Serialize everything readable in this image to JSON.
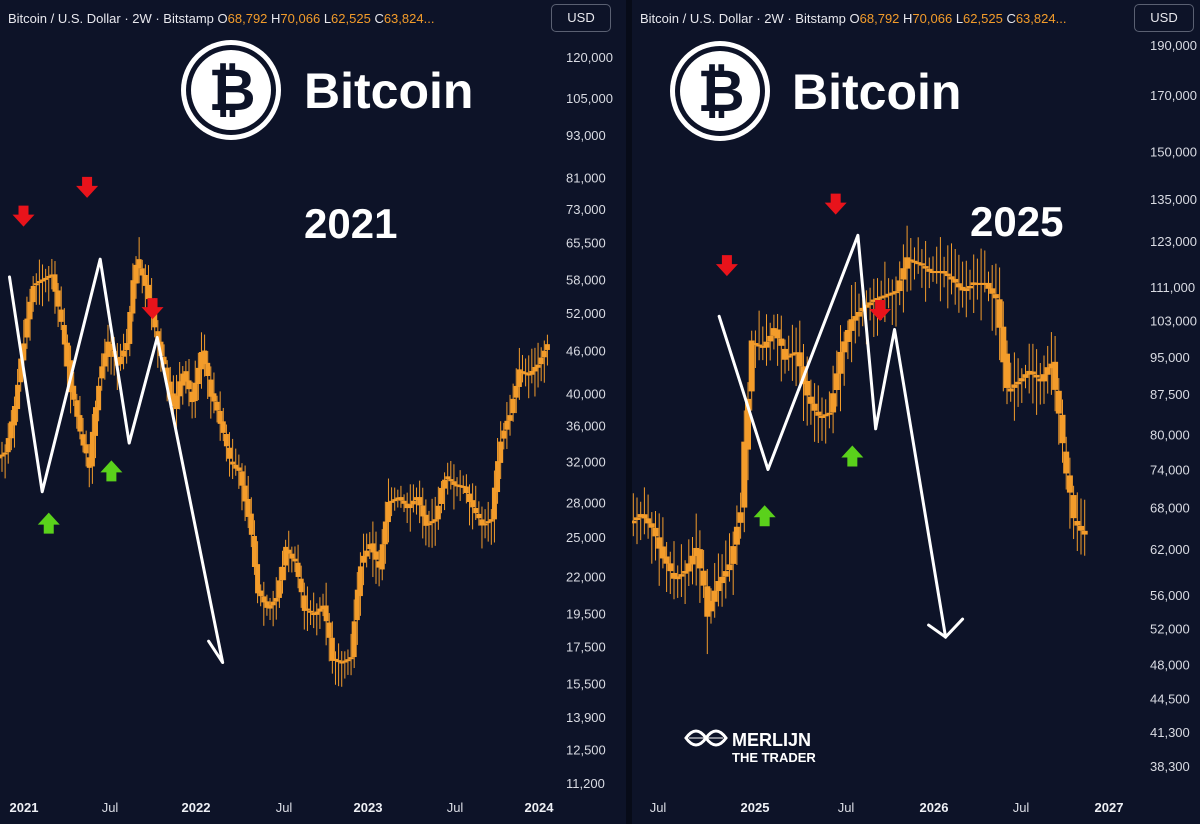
{
  "chart_data": [
    {
      "type": "candlestick",
      "header": {
        "symbol": "Bitcoin / U.S. Dollar · 2W · Bitstamp",
        "open_label": "O",
        "open": "68,792",
        "high_label": "H",
        "high": "70,066",
        "low_label": "L",
        "low": "62,525",
        "close_label": "C",
        "close": "63,824..."
      },
      "currency_button": "USD",
      "logo_text": "Bitcoin",
      "annotation_year": "2021",
      "y_axis_scale": "log",
      "y_axis_ticks": [
        "120,000",
        "105,000",
        "93,000",
        "81,000",
        "73,000",
        "65,500",
        "58,000",
        "52,000",
        "46,000",
        "40,000",
        "36,000",
        "32,000",
        "28,000",
        "25,000",
        "22,000",
        "19,500",
        "17,500",
        "15,500",
        "13,900",
        "12,500",
        "11,200"
      ],
      "x_axis_ticks": [
        {
          "label": "2021",
          "bold": true
        },
        {
          "label": "Jul",
          "bold": false
        },
        {
          "label": "2022",
          "bold": true
        },
        {
          "label": "Jul",
          "bold": false
        },
        {
          "label": "2023",
          "bold": true
        },
        {
          "label": "Jul",
          "bold": false
        },
        {
          "label": "2024",
          "bold": true
        }
      ],
      "close_path": [
        33000,
        38000,
        48000,
        57000,
        58000,
        59000,
        50000,
        41000,
        35000,
        31500,
        42000,
        47000,
        44000,
        47000,
        62000,
        57000,
        49000,
        43500,
        38000,
        43000,
        39000,
        46000,
        40000,
        36500,
        32000,
        31000,
        27000,
        21000,
        19800,
        20500,
        24000,
        23000,
        19800,
        19400,
        20000,
        16800,
        16600,
        16900,
        23000,
        24500,
        22500,
        28000,
        28500,
        27500,
        28500,
        26000,
        26500,
        30500,
        29700,
        29500,
        27500,
        26000,
        26500,
        34500,
        37500,
        43000,
        42500,
        44000,
        47000
      ],
      "pattern_line": [
        [
          0.8,
          58500
        ],
        [
          4.3,
          29000
        ],
        [
          10.5,
          62000
        ],
        [
          13.6,
          34000
        ],
        [
          16.6,
          48000
        ],
        [
          23.6,
          16600
        ],
        [
          22.1,
          17800
        ]
      ],
      "red_arrows": [
        [
          2.3,
          71000
        ],
        [
          9.1,
          78000
        ],
        [
          16.1,
          52500
        ]
      ],
      "green_arrows": [
        [
          5.0,
          26300
        ],
        [
          11.7,
          31200
        ]
      ]
    },
    {
      "type": "candlestick",
      "header": {
        "symbol": "Bitcoin / U.S. Dollar · 2W · Bitstamp",
        "open_label": "O",
        "open": "68,792",
        "high_label": "H",
        "high": "70,066",
        "low_label": "L",
        "low": "62,525",
        "close_label": "C",
        "close": "63,824..."
      },
      "currency_button": "USD",
      "logo_text": "Bitcoin",
      "annotation_year": "2025",
      "y_axis_scale": "log",
      "y_axis_ticks": [
        "190,000",
        "170,000",
        "150,000",
        "135,000",
        "123,000",
        "111,000",
        "103,000",
        "95,000",
        "87,500",
        "80,000",
        "74,000",
        "68,000",
        "62,000",
        "56,000",
        "52,000",
        "48,000",
        "44,500",
        "41,300",
        "38,300"
      ],
      "x_axis_ticks": [
        {
          "label": "Jul",
          "bold": false
        },
        {
          "label": "2025",
          "bold": true
        },
        {
          "label": "Jul",
          "bold": false
        },
        {
          "label": "2026",
          "bold": true
        },
        {
          "label": "Jul",
          "bold": false
        },
        {
          "label": "2027",
          "bold": true
        }
      ],
      "close_path": [
        67000,
        65000,
        61000,
        58000,
        59000,
        62000,
        54000,
        57500,
        60000,
        68000,
        98000,
        97000,
        101000,
        95000,
        96000,
        87000,
        83000,
        84000,
        96000,
        103000,
        106000,
        108000,
        109000,
        110000,
        118000,
        117000,
        115000,
        115000,
        113000,
        110000,
        112000,
        112000,
        108000,
        88000,
        90000,
        92000,
        90000,
        94000,
        77000,
        66000,
        64000
      ],
      "pattern_line": [
        [
          7.4,
          104000
        ],
        [
          11.8,
          74000
        ],
        [
          19.9,
          124500
        ],
        [
          21.5,
          81000
        ],
        [
          23.2,
          101000
        ],
        [
          27.8,
          51000
        ]
      ],
      "arrow_head_at": [
        27.8,
        51000
      ],
      "red_arrows": [
        [
          8.1,
          116000
        ],
        [
          17.9,
          133000
        ],
        [
          21.9,
          105000
        ]
      ],
      "green_arrows": [
        [
          11.5,
          67000
        ],
        [
          19.4,
          76500
        ]
      ],
      "watermark": {
        "line1": "MERLIJN",
        "line2": "THE TRADER"
      }
    }
  ]
}
